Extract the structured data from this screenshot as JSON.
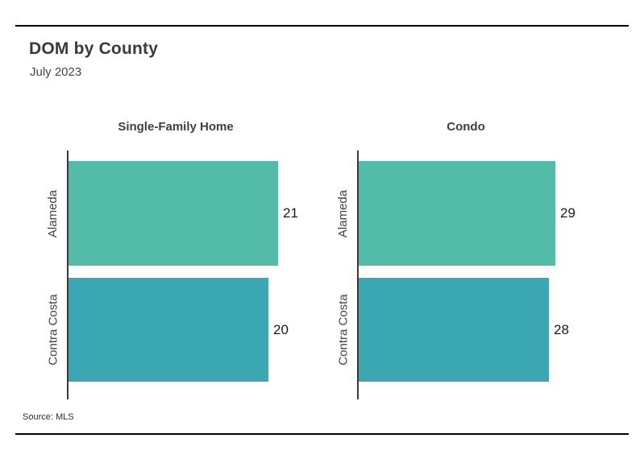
{
  "header": {
    "title": "DOM by County",
    "subtitle": "July 2023"
  },
  "footer": {
    "source": "Source: MLS"
  },
  "colors": {
    "alameda_bar": "#52BCA8",
    "contra_costa_bar": "#3AA7B2",
    "axis": "#3a3a3a",
    "rule": "#000000"
  },
  "chart_data": [
    {
      "type": "bar",
      "orientation": "horizontal",
      "title": "Single-Family Home",
      "categories": [
        "Alameda",
        "Contra Costa"
      ],
      "values": [
        21,
        20
      ],
      "xlim": [
        0,
        24.2
      ],
      "bar_colors": [
        "#52BCA8",
        "#3AA7B2"
      ],
      "grid": false,
      "legend_position": "none",
      "value_labels_shown": true
    },
    {
      "type": "bar",
      "orientation": "horizontal",
      "title": "Condo",
      "categories": [
        "Alameda",
        "Contra Costa"
      ],
      "values": [
        29,
        28
      ],
      "xlim": [
        0,
        35.6
      ],
      "bar_colors": [
        "#52BCA8",
        "#3AA7B2"
      ],
      "grid": false,
      "legend_position": "none",
      "value_labels_shown": true
    }
  ]
}
